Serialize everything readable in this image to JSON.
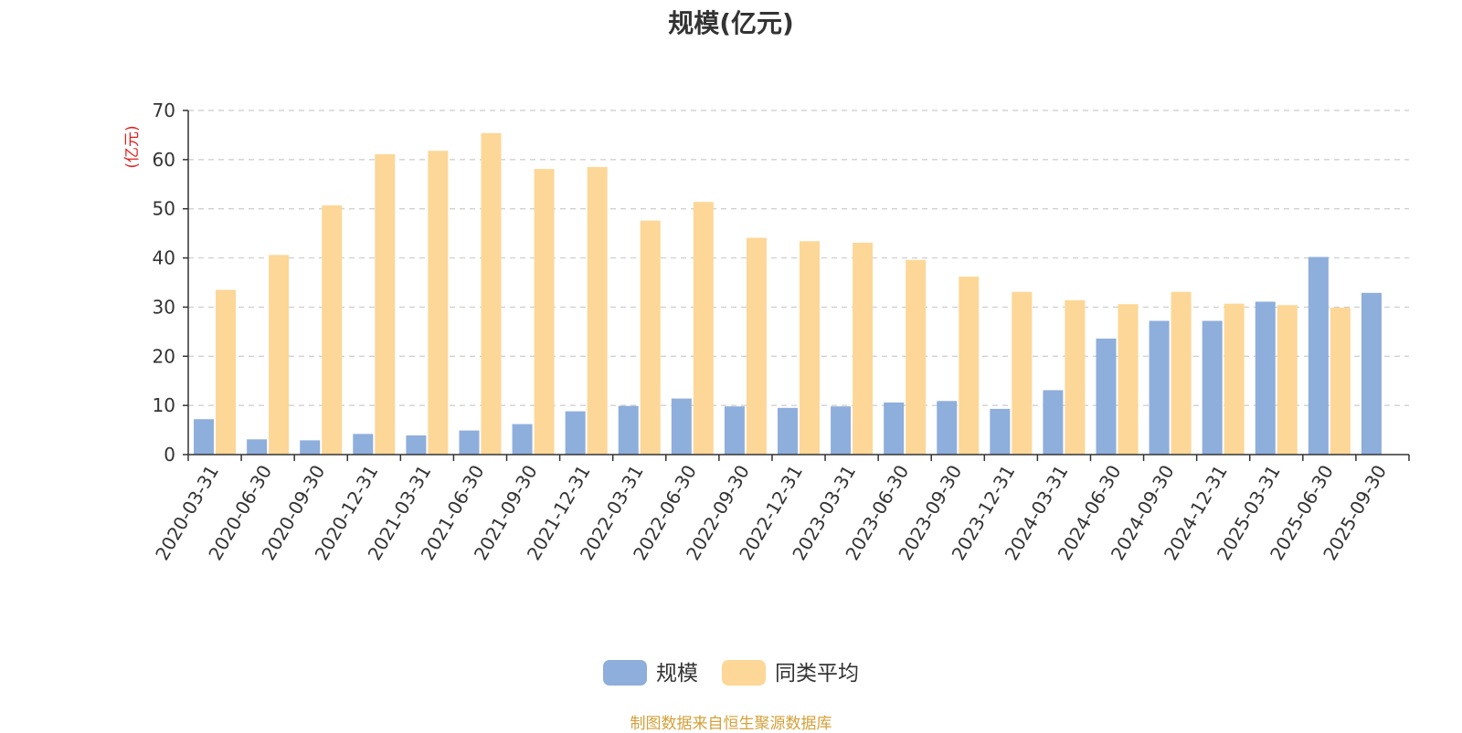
{
  "title": "规模(亿元)",
  "source_note": "制图数据来自恒生聚源数据库",
  "chart_data": {
    "type": "bar",
    "title": "规模(亿元)",
    "ylabel": "(亿元)",
    "ylim": [
      0,
      70
    ],
    "yticks": [
      0,
      10,
      20,
      30,
      40,
      50,
      60,
      70
    ],
    "grid": true,
    "legend_position": "bottom-center",
    "categories": [
      "2020-03-31",
      "2020-06-30",
      "2020-09-30",
      "2020-12-31",
      "2021-03-31",
      "2021-06-30",
      "2021-09-30",
      "2021-12-31",
      "2022-03-31",
      "2022-06-30",
      "2022-09-30",
      "2022-12-31",
      "2023-03-31",
      "2023-06-30",
      "2023-09-30",
      "2023-12-31",
      "2024-03-31",
      "2024-06-30",
      "2024-09-30",
      "2024-12-31",
      "2025-03-31",
      "2025-06-30",
      "2025-09-30"
    ],
    "series": [
      {
        "name": "规模",
        "color": "#8eaedc",
        "values": [
          7.2,
          3.1,
          2.9,
          4.2,
          3.9,
          4.9,
          6.2,
          8.8,
          9.9,
          11.4,
          9.8,
          9.5,
          9.8,
          10.6,
          10.9,
          9.3,
          13.1,
          23.6,
          27.2,
          27.2,
          31.1,
          40.2,
          32.9
        ]
      },
      {
        "name": "同类平均",
        "color": "#fdd797",
        "values": [
          33.5,
          40.6,
          50.7,
          61.1,
          61.8,
          65.4,
          58.1,
          58.5,
          47.6,
          51.4,
          44.1,
          43.4,
          43.1,
          39.6,
          36.2,
          33.1,
          31.4,
          30.6,
          33.1,
          30.7,
          30.4,
          29.9,
          null
        ]
      }
    ]
  }
}
